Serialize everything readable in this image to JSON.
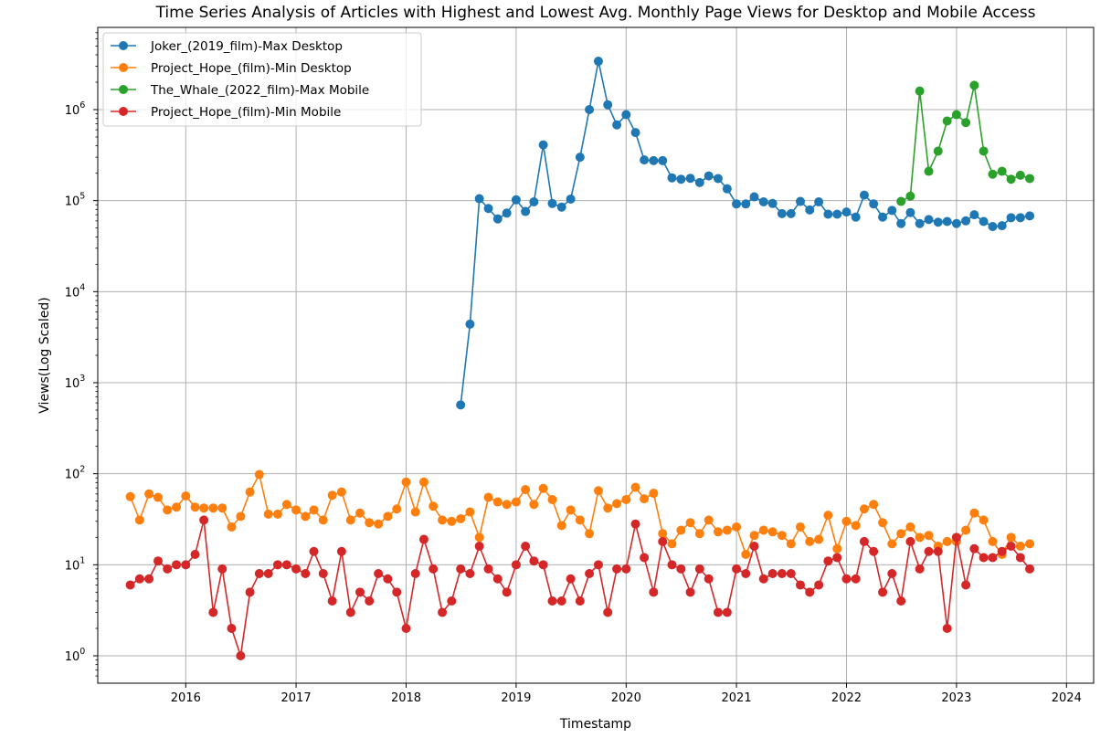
{
  "chart_data": {
    "type": "line",
    "title": "Time Series Analysis of Articles with Highest and Lowest Avg. Monthly Page Views for Desktop and Mobile Access",
    "xlabel": "Timestamp",
    "ylabel": "Views(Log Scaled)",
    "y_scale": "log",
    "ylim": [
      0.5,
      8000000
    ],
    "xlim": [
      "2015-03-15",
      "2024-03-31"
    ],
    "grid": true,
    "legend_position": "top-left",
    "x_ticks": [
      "2016",
      "2017",
      "2018",
      "2019",
      "2020",
      "2021",
      "2022",
      "2023",
      "2024"
    ],
    "y_ticks": [
      {
        "value": 1,
        "exp": "0"
      },
      {
        "value": 10,
        "exp": "1"
      },
      {
        "value": 100,
        "exp": "2"
      },
      {
        "value": 1000,
        "exp": "3"
      },
      {
        "value": 10000,
        "exp": "4"
      },
      {
        "value": 100000,
        "exp": "5"
      },
      {
        "value": 1000000,
        "exp": "6"
      }
    ],
    "series": [
      {
        "name": "Joker_(2019_film)-Max Desktop",
        "color": "#1f77b4",
        "start": "2018-07",
        "values": [
          570,
          4400,
          105000,
          82000,
          63000,
          73000,
          102000,
          76000,
          97000,
          410000,
          93000,
          85000,
          104000,
          300000,
          1000000,
          3400000,
          1130000,
          680000,
          880000,
          560000,
          280000,
          275000,
          275000,
          178000,
          172000,
          176000,
          158000,
          187000,
          175000,
          135000,
          92000,
          92000,
          110000,
          97000,
          93000,
          72000,
          72000,
          98000,
          79000,
          97000,
          71000,
          71000,
          75000,
          66000,
          115000,
          92000,
          66000,
          78000,
          56000,
          74000,
          56000,
          62000,
          58000,
          59000,
          56000,
          60000,
          70000,
          59000,
          52000,
          53000,
          65000,
          65000,
          68000
        ]
      },
      {
        "name": "Project_Hope_(film)-Min Desktop",
        "color": "#ff7f0e",
        "start": "2015-07",
        "values": [
          56,
          31,
          60,
          55,
          40,
          43,
          57,
          43,
          42,
          42,
          42,
          26,
          34,
          63,
          98,
          36,
          36,
          46,
          40,
          34,
          40,
          31,
          58,
          63,
          31,
          37,
          29,
          28,
          34,
          41,
          81,
          38,
          81,
          44,
          31,
          30,
          32,
          38,
          20,
          55,
          49,
          46,
          49,
          67,
          46,
          69,
          52,
          27,
          40,
          31,
          22,
          65,
          42,
          47,
          52,
          71,
          53,
          61,
          22,
          17,
          24,
          29,
          22,
          31,
          23,
          24,
          26,
          13,
          21,
          24,
          23,
          21,
          17,
          26,
          18,
          19,
          35,
          15,
          30,
          27,
          41,
          46,
          29,
          17,
          22,
          26,
          20,
          21,
          16,
          18,
          18,
          24,
          37,
          31,
          18,
          13,
          20,
          16,
          17
        ]
      },
      {
        "name": "The_Whale_(2022_film)-Max Mobile",
        "color": "#2ca02c",
        "start": "2022-07",
        "values": [
          98000,
          112000,
          1600000,
          210000,
          350000,
          750000,
          880000,
          720000,
          1850000,
          350000,
          195000,
          210000,
          172000,
          190000,
          175000
        ]
      },
      {
        "name": "Project_Hope_(film)-Min Mobile",
        "color": "#d62728",
        "start": "2015-07",
        "values": [
          6,
          7,
          7,
          11,
          9,
          10,
          10,
          13,
          31,
          3,
          9,
          2,
          1,
          5,
          8,
          8,
          10,
          10,
          9,
          8,
          14,
          8,
          4,
          14,
          3,
          5,
          4,
          8,
          7,
          5,
          2,
          8,
          19,
          9,
          3,
          4,
          9,
          8,
          16,
          9,
          7,
          5,
          10,
          16,
          11,
          10,
          4,
          4,
          7,
          4,
          8,
          10,
          3,
          9,
          9,
          28,
          12,
          5,
          18,
          10,
          9,
          5,
          9,
          7,
          3,
          3,
          9,
          8,
          16,
          7,
          8,
          8,
          8,
          6,
          5,
          6,
          11,
          12,
          7,
          7,
          18,
          14,
          5,
          8,
          4,
          18,
          9,
          14,
          14,
          2,
          20,
          6,
          15,
          12,
          12,
          14,
          16,
          12,
          9
        ]
      }
    ]
  }
}
